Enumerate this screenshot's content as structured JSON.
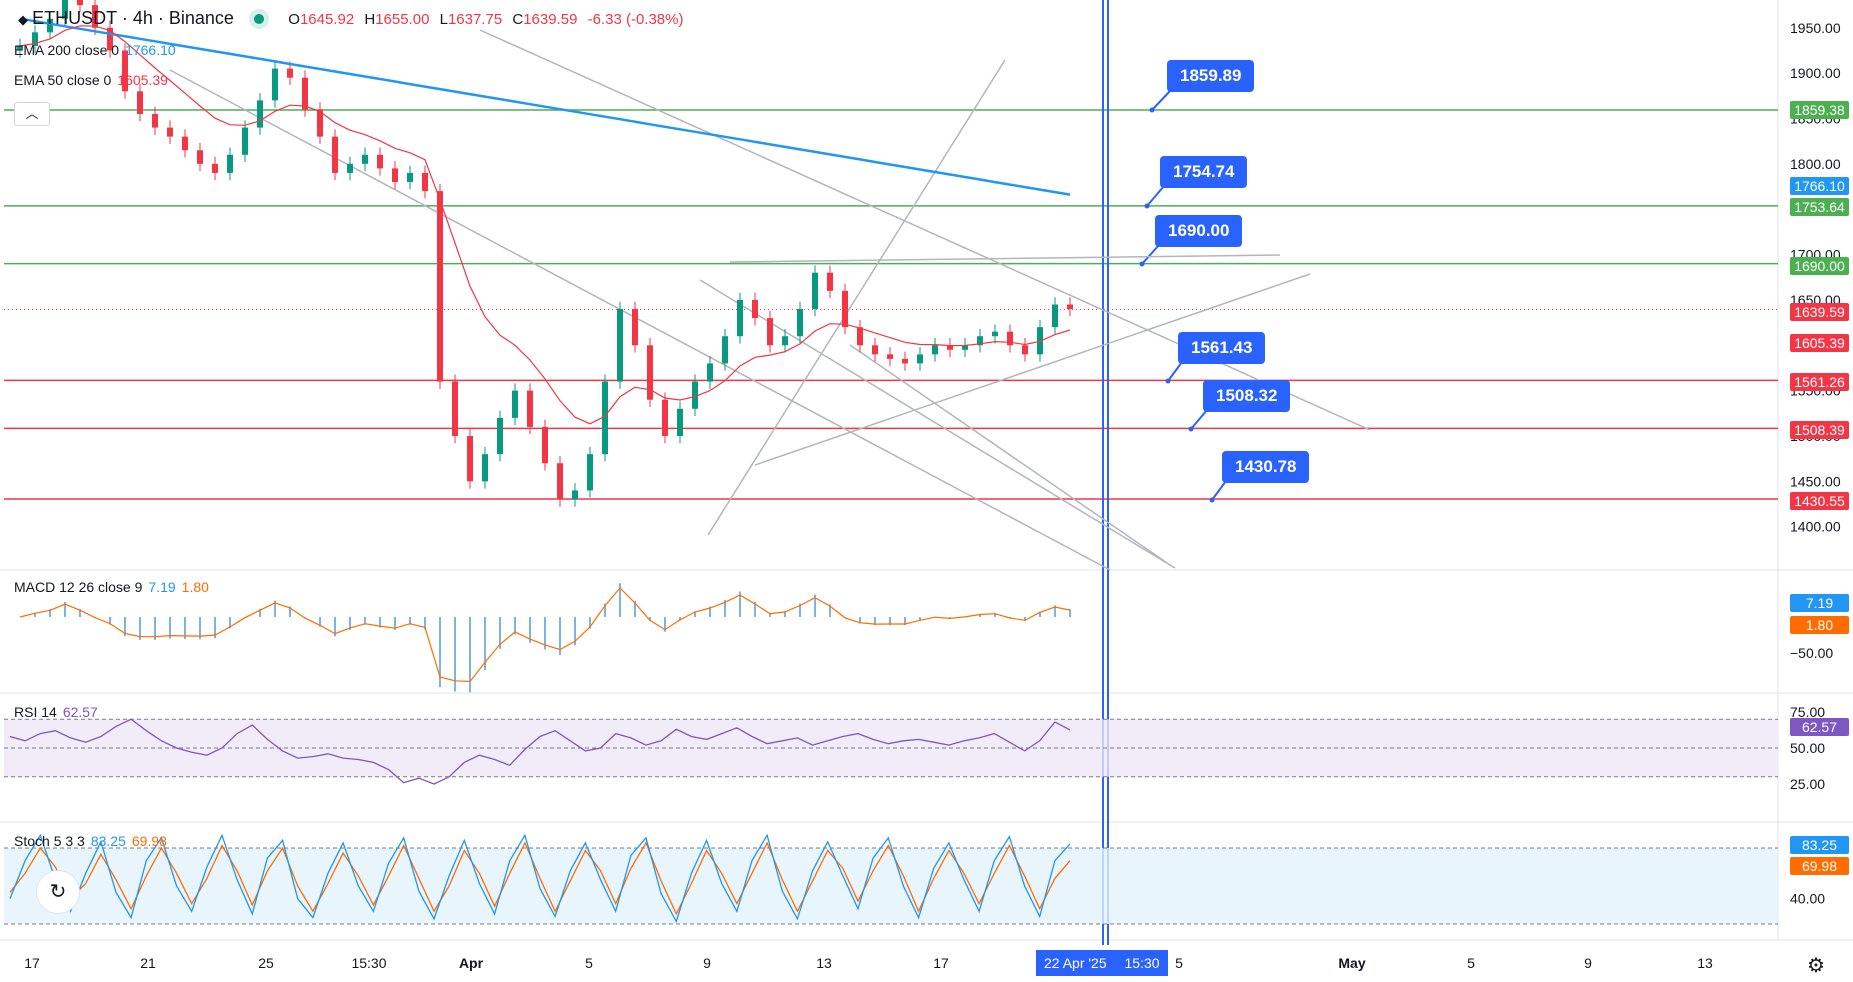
{
  "header": {
    "symbol": "ETHUSDT · 4h · Binance",
    "open_label": "O",
    "open": "1645.92",
    "high_label": "H",
    "high": "1655.00",
    "low_label": "L",
    "low": "1637.75",
    "close_label": "C",
    "close": "1639.59",
    "change": "-6.33 (-0.38%)"
  },
  "legends": {
    "ema200": {
      "label": "EMA 200 close 0",
      "value": "1766.10",
      "color": "#2196f3"
    },
    "ema50": {
      "label": "EMA 50 close 0",
      "value": "1605.39",
      "color": "#f23645"
    },
    "macd": {
      "label": "MACD 12 26 close 9",
      "v1": "7.19",
      "v2": "1.80"
    },
    "rsi": {
      "label": "RSI 14",
      "value": "62.57"
    },
    "stoch": {
      "label": "Stoch 5 3 3",
      "v1": "83.25",
      "v2": "69.98"
    }
  },
  "colors": {
    "blue": "#2962ff",
    "green_line": "#4caf50",
    "red_line": "#f23645",
    "up": "#089981",
    "down": "#f23645",
    "ema200": "#2196f3",
    "ema50": "#f23645",
    "macd_hist": "#80b4e0",
    "signal": "#ff6d00",
    "rsi": "#7e57c2",
    "stoch_k": "#2196f3",
    "stoch_d": "#ff6d00"
  },
  "callouts": [
    "1859.89",
    "1754.74",
    "1690.00",
    "1561.43",
    "1508.32",
    "1430.78"
  ],
  "price_tags": [
    {
      "text": "1859.38",
      "color": "#4caf50"
    },
    {
      "text": "1766.10",
      "color": "#2196f3"
    },
    {
      "text": "1753.64",
      "color": "#4caf50"
    },
    {
      "text": "1690.00",
      "color": "#4caf50"
    },
    {
      "text": "1639.59",
      "color": "#f23645"
    },
    {
      "text": "1605.39",
      "color": "#f23645"
    },
    {
      "text": "1561.26",
      "color": "#f23645"
    },
    {
      "text": "1508.39",
      "color": "#f23645"
    },
    {
      "text": "1430.55",
      "color": "#f23645"
    }
  ],
  "indicator_tags": {
    "macd_v1": "7.19",
    "macd_v2": "1.80",
    "rsi": "62.57",
    "stoch_v1": "83.25",
    "stoch_v2": "69.98"
  },
  "time_badge": {
    "date": "22 Apr '25",
    "time": "15:30"
  },
  "icons": {
    "collapse": "chevron-up-icon",
    "settings": "gear-icon",
    "float": "replay-icon",
    "logo": "ethereum-icon"
  },
  "chart_data": {
    "type": "candlestick",
    "symbol": "ETHUSDT",
    "timeframe": "4h",
    "ylim": [
      1380,
      1975
    ],
    "price_axis_ticks": [
      "1950.00",
      "1900.00",
      "1850.00",
      "1800.00",
      "1700.00",
      "1650.00",
      "1550.00",
      "1500.00",
      "1450.00",
      "1400.00"
    ],
    "x_axis_labels": [
      "17",
      "21",
      "25",
      "15:30",
      "Apr",
      "5",
      "9",
      "13",
      "17",
      "5",
      "May",
      "5",
      "9",
      "13"
    ],
    "horizontal_levels": [
      {
        "price": 1859.38,
        "color": "green"
      },
      {
        "price": 1753.64,
        "color": "green"
      },
      {
        "price": 1690.0,
        "color": "green"
      },
      {
        "price": 1561.26,
        "color": "red"
      },
      {
        "price": 1508.39,
        "color": "red"
      },
      {
        "price": 1430.55,
        "color": "red"
      }
    ],
    "last_price": 1639.59,
    "ema200_last": 1766.1,
    "ema50_last": 1605.39,
    "closes": [
      1930,
      1945,
      1960,
      1990,
      1975,
      1950,
      1925,
      1880,
      1855,
      1840,
      1830,
      1815,
      1800,
      1790,
      1810,
      1840,
      1870,
      1905,
      1895,
      1860,
      1830,
      1790,
      1800,
      1810,
      1795,
      1780,
      1790,
      1770,
      1560,
      1500,
      1450,
      1480,
      1520,
      1550,
      1510,
      1470,
      1430,
      1440,
      1480,
      1560,
      1640,
      1600,
      1540,
      1500,
      1530,
      1560,
      1580,
      1610,
      1650,
      1630,
      1600,
      1610,
      1640,
      1680,
      1660,
      1620,
      1600,
      1590,
      1585,
      1580,
      1590,
      1600,
      1595,
      1600,
      1610,
      1615,
      1600,
      1590,
      1620,
      1645,
      1640
    ],
    "macd_axis_ticks": [
      "−50.00"
    ],
    "rsi_axis_ticks": [
      "75.00",
      "50.00",
      "25.00"
    ],
    "rsi_values": [
      58,
      55,
      60,
      62,
      57,
      54,
      58,
      65,
      70,
      62,
      55,
      50,
      47,
      45,
      50,
      60,
      66,
      56,
      48,
      43,
      44,
      46,
      43,
      42,
      40,
      35,
      26,
      29,
      25,
      30,
      40,
      45,
      42,
      38,
      49,
      58,
      62,
      55,
      48,
      50,
      60,
      57,
      52,
      55,
      63,
      58,
      56,
      60,
      64,
      58,
      53,
      55,
      57,
      52,
      55,
      58,
      60,
      56,
      53,
      55,
      56,
      54,
      52,
      55,
      57,
      60,
      54,
      48,
      55,
      68,
      62.57
    ],
    "stoch_axis_ticks": [
      "40.00"
    ],
    "stoch_k": [
      40,
      70,
      90,
      55,
      30,
      60,
      85,
      45,
      25,
      70,
      88,
      50,
      30,
      65,
      90,
      55,
      28,
      72,
      86,
      40,
      25,
      60,
      84,
      50,
      30,
      68,
      88,
      46,
      24,
      58,
      86,
      52,
      28,
      70,
      90,
      48,
      26,
      62,
      84,
      55,
      30,
      74,
      88,
      44,
      22,
      60,
      86,
      52,
      30,
      70,
      90,
      46,
      24,
      62,
      85,
      58,
      32,
      72,
      88,
      50,
      25,
      64,
      84,
      55,
      30,
      70,
      89,
      50,
      26,
      70,
      83.25
    ],
    "stoch_d": [
      45,
      60,
      80,
      65,
      40,
      52,
      75,
      55,
      32,
      58,
      80,
      60,
      36,
      56,
      82,
      62,
      35,
      62,
      80,
      50,
      30,
      52,
      76,
      58,
      35,
      58,
      82,
      56,
      30,
      50,
      78,
      60,
      34,
      60,
      84,
      56,
      30,
      54,
      78,
      62,
      36,
      64,
      84,
      54,
      28,
      52,
      78,
      60,
      36,
      60,
      84,
      55,
      30,
      54,
      78,
      64,
      38,
      62,
      82,
      58,
      30,
      56,
      78,
      60,
      36,
      60,
      82,
      58,
      32,
      56,
      69.98
    ]
  }
}
